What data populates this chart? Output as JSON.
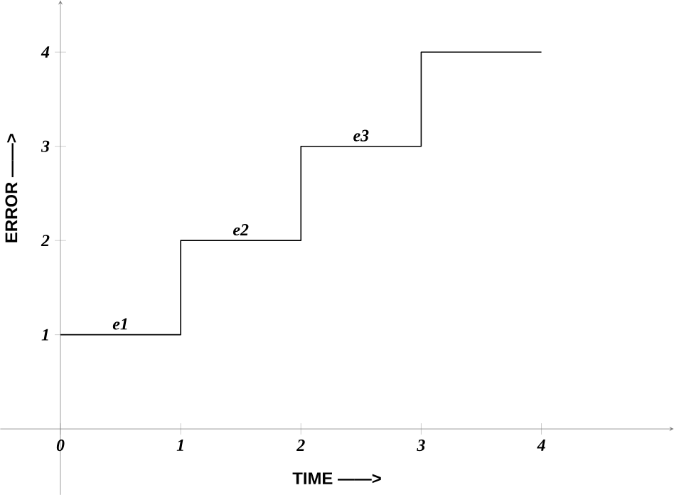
{
  "chart_data": {
    "type": "step",
    "xlabel": "TIME ——>",
    "ylabel": "ERROR ——>",
    "x": [
      0,
      1,
      2,
      3,
      4
    ],
    "values": [
      1,
      1,
      2,
      3,
      4
    ],
    "color": "#000000",
    "xlim": [
      -0.5,
      5.1
    ],
    "ylim": [
      -0.7,
      4.55
    ],
    "xticks": [
      0,
      1,
      2,
      3,
      4
    ],
    "yticks": [
      1,
      2,
      3,
      4
    ],
    "annotations": [
      {
        "text": "e1",
        "x": 0.5,
        "y": 1
      },
      {
        "text": "e2",
        "x": 1.5,
        "y": 2
      },
      {
        "text": "e3",
        "x": 2.5,
        "y": 3
      }
    ]
  }
}
